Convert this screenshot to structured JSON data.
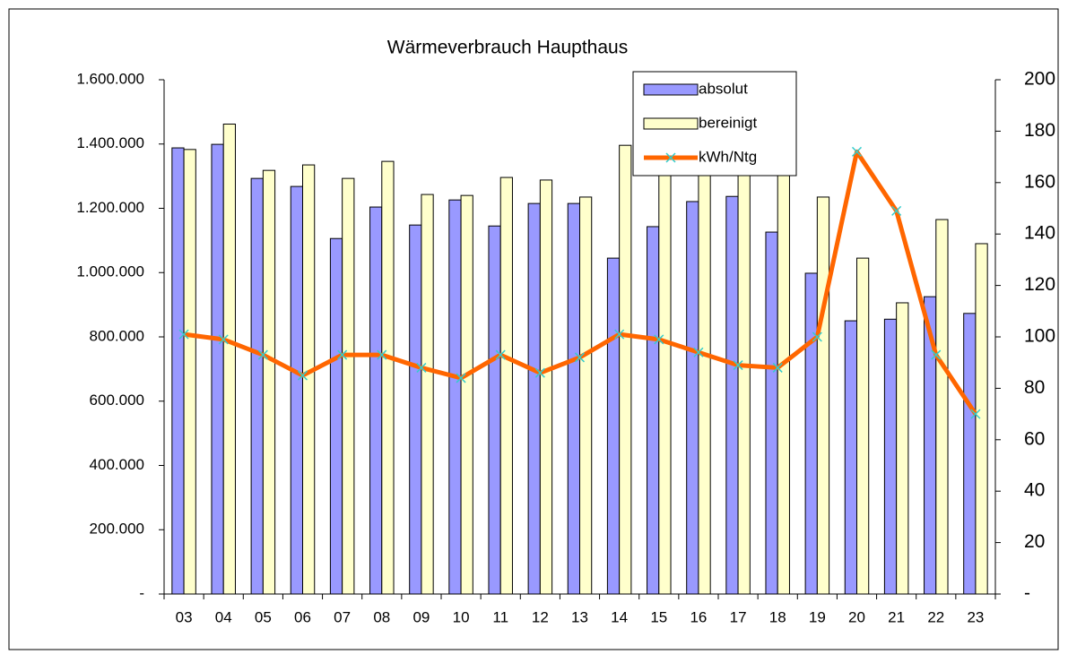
{
  "chart_data": {
    "type": "bar",
    "title": "Wärmeverbrauch  Haupthaus",
    "categories": [
      "03",
      "04",
      "05",
      "06",
      "07",
      "08",
      "09",
      "10",
      "11",
      "12",
      "13",
      "14",
      "15",
      "16",
      "17",
      "18",
      "19",
      "20",
      "21",
      "22",
      "23"
    ],
    "series": [
      {
        "name": "absolut",
        "color": "#9999ff",
        "values": [
          1388000,
          1399000,
          1293000,
          1268000,
          1106000,
          1204000,
          1148000,
          1226000,
          1145000,
          1215000,
          1215000,
          1045000,
          1143000,
          1221000,
          1237000,
          1126000,
          998000,
          850000,
          855000,
          925000,
          873000
        ]
      },
      {
        "name": "bereinigt",
        "color": "#ffffcc",
        "values": [
          1383000,
          1462000,
          1318000,
          1335000,
          1293000,
          1346000,
          1243000,
          1240000,
          1296000,
          1288000,
          1235000,
          1396000,
          1330000,
          1340000,
          1330000,
          1396000,
          1235000,
          1045000,
          906000,
          1165000,
          1090000
        ]
      },
      {
        "name": "kWh/Ntg",
        "color": "#ff6600",
        "type": "line",
        "axis": "y2",
        "values": [
          101,
          99,
          93,
          85,
          93,
          93,
          88,
          84,
          93,
          86,
          92,
          101,
          99,
          94,
          89,
          88,
          100,
          172,
          149,
          93,
          70
        ]
      }
    ],
    "ylim": [
      0,
      1600000
    ],
    "yticks": [
      {
        "value": 0,
        "label": "-"
      },
      {
        "value": 200000,
        "label": "200.000"
      },
      {
        "value": 400000,
        "label": "400.000"
      },
      {
        "value": 600000,
        "label": "600.000"
      },
      {
        "value": 800000,
        "label": "800.000"
      },
      {
        "value": 1000000,
        "label": "1.000.000"
      },
      {
        "value": 1200000,
        "label": "1.200.000"
      },
      {
        "value": 1400000,
        "label": "1.400.000"
      },
      {
        "value": 1600000,
        "label": "1.600.000"
      }
    ],
    "y2lim": [
      0,
      200
    ],
    "y2ticks": [
      {
        "value": 0,
        "label": "-"
      },
      20,
      40,
      60,
      80,
      100,
      120,
      140,
      160,
      180,
      200
    ],
    "legend": "top-right"
  }
}
